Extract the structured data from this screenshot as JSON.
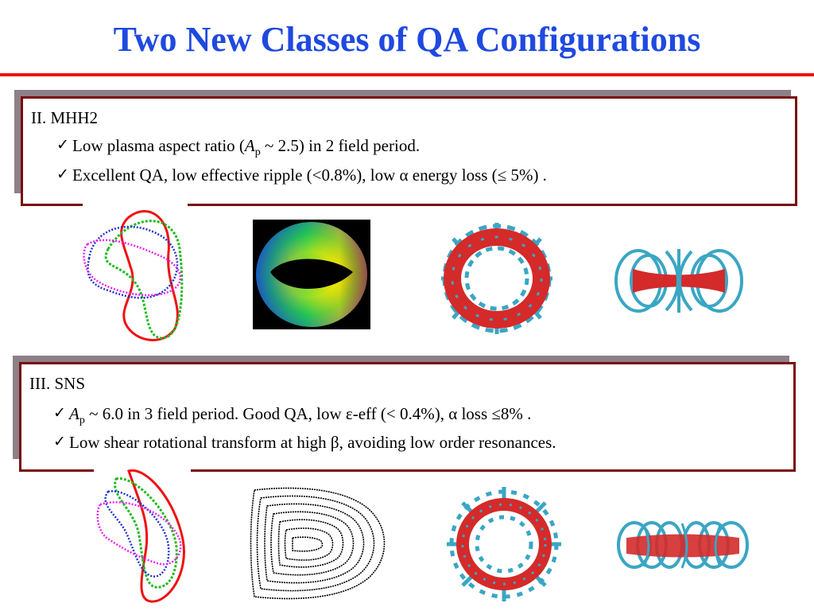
{
  "title": "Two New Classes of QA Configurations",
  "colors": {
    "title": "#1f49e0",
    "rule": "#ee1111",
    "box_border": "#7a0a0a",
    "shadow": "#8d8088",
    "coil": "#3aa6c4",
    "plasma": "#d42a2a"
  },
  "sections": [
    {
      "heading": "II. MHH2",
      "bullets": [
        {
          "pre": "Low plasma aspect ratio (",
          "sym": "A",
          "sub": "p",
          "post": " ~ 2.5) in 2 field period."
        },
        {
          "text": "Excellent QA, low effective ripple (<0.8%), low α energy loss (≤ 5%) ."
        }
      ]
    },
    {
      "heading": "III. SNS",
      "bullets": [
        {
          "pre": "",
          "sym": "A",
          "sub": "p",
          "post": " ~ 6.0 in 3 field period.  Good QA, low ε-eff (< 0.4%), α loss ≤8% ."
        },
        {
          "text": "Low shear rotational transform at high β, avoiding low order resonances."
        }
      ]
    }
  ],
  "icons": {
    "check": "checkmark-icon"
  }
}
